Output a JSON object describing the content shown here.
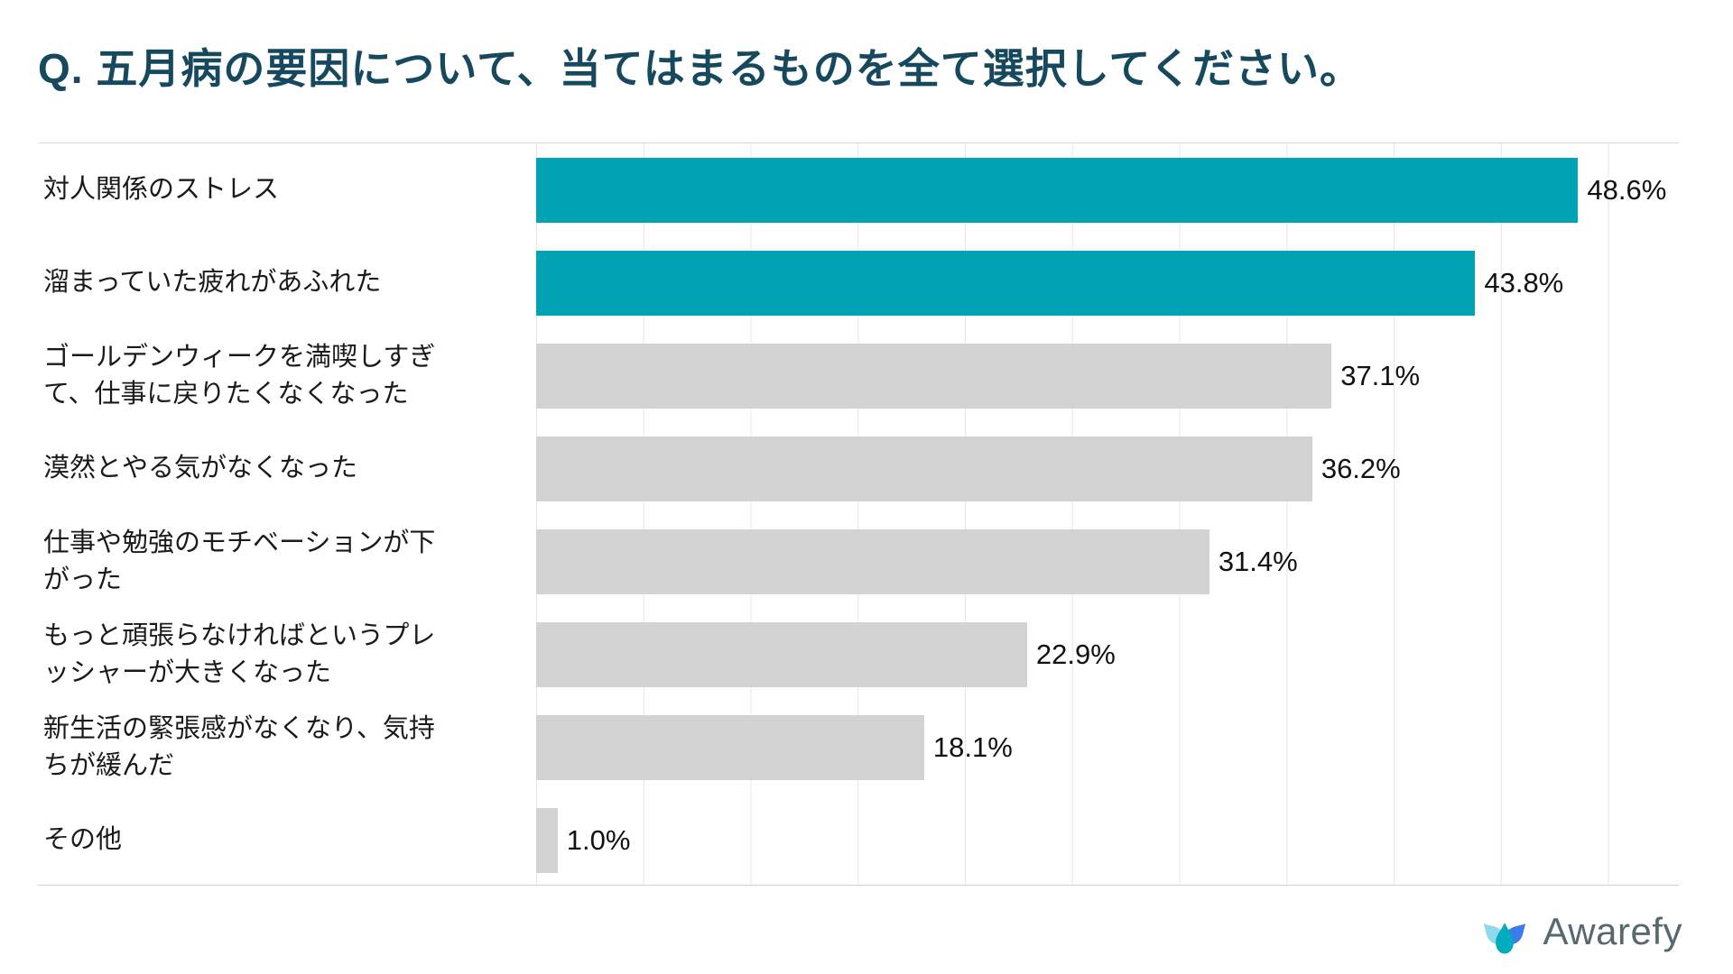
{
  "title": "Q. 五月病の要因について、当てはまるものを全て選択してください。",
  "chart_data": {
    "type": "bar",
    "orientation": "horizontal",
    "title": "Q. 五月病の要因について、当てはまるものを全て選択してください。",
    "categories": [
      "対人関係のストレス",
      "溜まっていた疲れがあふれた",
      "ゴールデンウィークを満喫しすぎて、仕事に戻りたくなくなった",
      "漠然とやる気がなくなった",
      "仕事や勉強のモチベーションが下がった",
      "もっと頑張らなければというプレッシャーが大きくなった",
      "新生活の緊張感がなくなり、気持ちが緩んだ",
      "その他"
    ],
    "values": [
      48.6,
      43.8,
      37.1,
      36.2,
      31.4,
      22.9,
      18.1,
      1.0
    ],
    "value_labels": [
      "48.6%",
      "43.8%",
      "37.1%",
      "36.2%",
      "31.4%",
      "22.9%",
      "18.1%",
      "1.0%"
    ],
    "colors": [
      "#00a2b3",
      "#00a2b3",
      "#d3d3d3",
      "#d3d3d3",
      "#d3d3d3",
      "#d3d3d3",
      "#d3d3d3",
      "#d3d3d3"
    ],
    "highlight_color": "#00a2b3",
    "default_color": "#d3d3d3",
    "xlim": [
      0,
      53.3
    ],
    "grid_step": 5,
    "grid": true,
    "legend": "none",
    "xlabel": "",
    "ylabel": ""
  },
  "branding": {
    "logo_text": "Awarefy",
    "logo_colors": {
      "light": "#8ed7ec",
      "teal": "#00acbe",
      "blue": "#3b7bea"
    }
  }
}
